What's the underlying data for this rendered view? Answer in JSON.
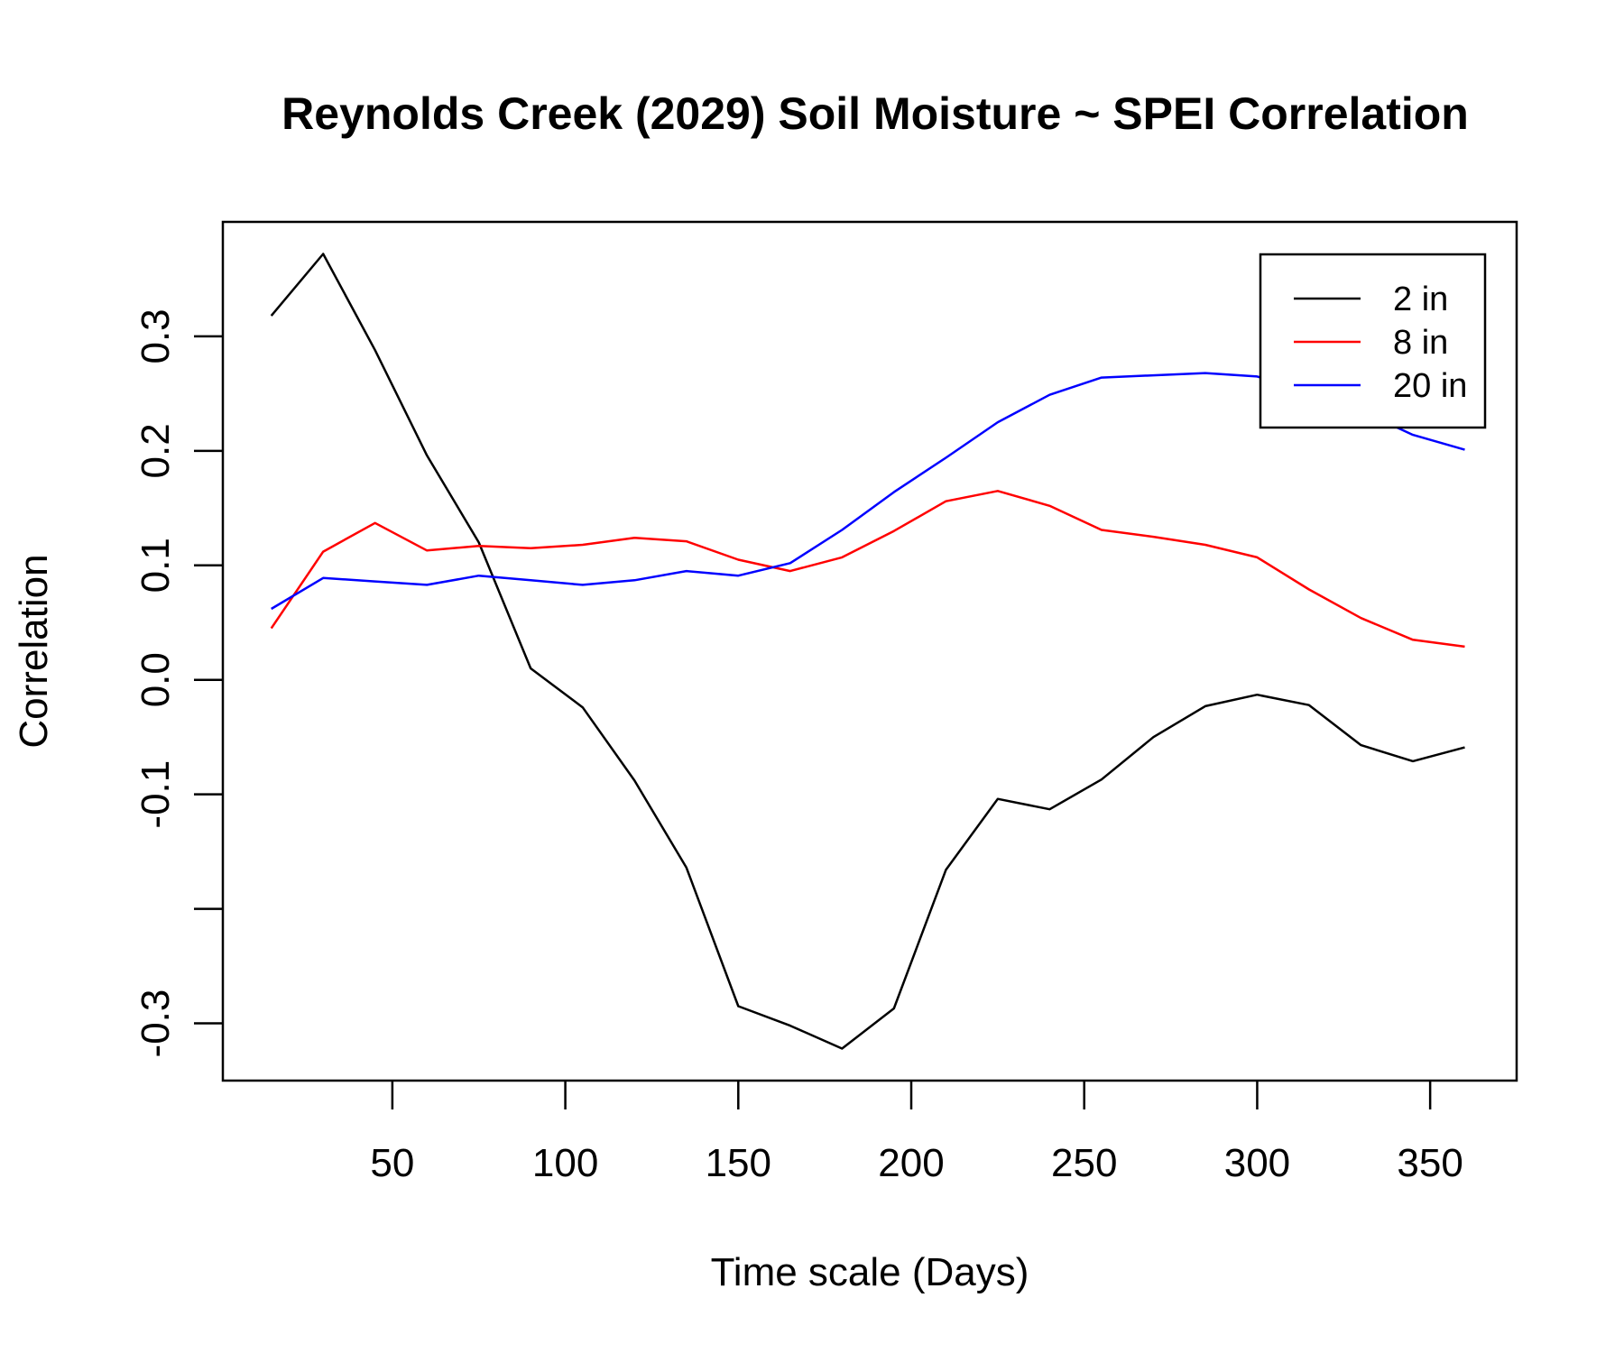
{
  "chart_data": {
    "type": "line",
    "title": "Reynolds Creek (2029) Soil Moisture ~ SPEI Correlation",
    "xlabel": "Time scale (Days)",
    "ylabel": "Correlation",
    "xlim": [
      1,
      375
    ],
    "ylim": [
      -0.35,
      0.4
    ],
    "x_ticks": [
      50,
      100,
      150,
      200,
      250,
      300,
      350
    ],
    "x_tick_labels": [
      "50",
      "100",
      "150",
      "200",
      "250",
      "300",
      "350"
    ],
    "y_ticks": [
      -0.3,
      -0.2,
      -0.1,
      0.0,
      0.1,
      0.2,
      0.3
    ],
    "y_tick_labels": [
      "-0.3",
      "",
      "-0.1",
      "0.0",
      "0.1",
      "0.2",
      "0.3"
    ],
    "grid": false,
    "legend_position": "top-right",
    "x": [
      15,
      30,
      45,
      60,
      75,
      90,
      105,
      120,
      135,
      150,
      165,
      180,
      195,
      210,
      225,
      240,
      255,
      270,
      285,
      300,
      315,
      330,
      345,
      360
    ],
    "series": [
      {
        "name": "2 in",
        "color": "#000000",
        "values": [
          0.318,
          0.372,
          0.288,
          0.196,
          0.12,
          0.01,
          -0.024,
          -0.088,
          -0.164,
          -0.285,
          -0.302,
          -0.322,
          -0.287,
          -0.166,
          -0.104,
          -0.113,
          -0.087,
          -0.05,
          -0.023,
          -0.013,
          -0.022,
          -0.057,
          -0.071,
          -0.059
        ]
      },
      {
        "name": "8 in",
        "color": "#ff0000",
        "values": [
          0.045,
          0.112,
          0.137,
          0.113,
          0.117,
          0.115,
          0.118,
          0.124,
          0.121,
          0.105,
          0.095,
          0.107,
          0.13,
          0.156,
          0.165,
          0.152,
          0.131,
          0.125,
          0.118,
          0.107,
          0.079,
          0.054,
          0.035,
          0.029
        ]
      },
      {
        "name": "20 in",
        "color": "#0000ff",
        "values": [
          0.062,
          0.089,
          0.086,
          0.083,
          0.091,
          0.087,
          0.083,
          0.087,
          0.095,
          0.091,
          0.102,
          0.131,
          0.164,
          0.194,
          0.225,
          0.249,
          0.264,
          0.266,
          0.268,
          0.265,
          0.252,
          0.235,
          0.214,
          0.201
        ]
      }
    ]
  }
}
